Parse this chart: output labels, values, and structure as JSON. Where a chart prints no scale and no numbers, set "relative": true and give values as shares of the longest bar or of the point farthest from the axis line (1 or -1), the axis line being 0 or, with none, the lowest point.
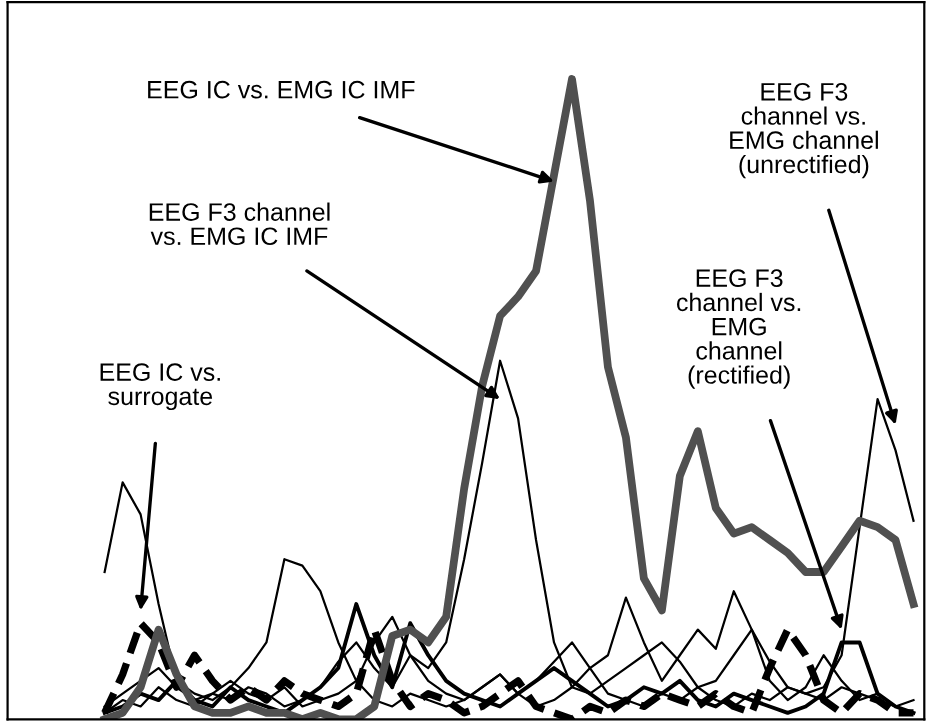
{
  "chart_data": {
    "type": "line",
    "relative": true,
    "categories": [
      null,
      null,
      null,
      null,
      null,
      null,
      null,
      null,
      null,
      null,
      null,
      null,
      null,
      null,
      null,
      null,
      null,
      null,
      null,
      null,
      null,
      null,
      null,
      null,
      null,
      null,
      null,
      null,
      null,
      null,
      null,
      null,
      null,
      null,
      null,
      null,
      null,
      null,
      null,
      null,
      null,
      null,
      null,
      null,
      null,
      null
    ],
    "annotations": [
      "EEG F3 channel\nvs. EMG IC IMF",
      "EEG F3\nchannel vs.\nEMG channel\n(unrectified)",
      "EEG F3\nchannel vs.\nEMG\nchannel\n(rectified)",
      "EEG IC vs.\nsurrogate",
      "EEG IC vs. EMG IC IMF"
    ],
    "series": [
      {
        "color": "#000000",
        "line_style": "solid",
        "values": [
          0.02,
          0.04,
          0.06,
          0.08,
          0.05,
          0.03,
          0.04,
          0.03,
          0.05,
          0.04,
          0.02,
          0.03,
          0.05,
          0.09,
          0.12,
          0.08,
          0.05,
          0.1,
          0.08,
          0.12,
          0.25,
          0.4,
          0.56,
          0.47,
          0.28,
          0.12,
          0.05,
          0.04,
          0.06,
          0.08,
          0.1,
          0.12,
          0.09,
          0.05,
          0.06,
          0.1,
          0.14,
          0.09,
          0.05,
          0.04,
          0.03,
          0.05,
          0.04,
          0.03,
          0.02,
          0.03
        ]
      },
      {
        "color": "#000000",
        "line_style": "solid",
        "values": [
          0.23,
          0.37,
          0.32,
          0.18,
          0.06,
          0.04,
          0.03,
          0.05,
          0.08,
          0.12,
          0.25,
          0.24,
          0.2,
          0.12,
          0.06,
          0.03,
          0.02,
          0.04,
          0.03,
          0.02,
          0.03,
          0.05,
          0.07,
          0.04,
          0.02,
          0.03,
          0.05,
          0.08,
          0.04,
          0.03,
          0.02,
          0.04,
          0.03,
          0.05,
          0.03,
          0.02,
          0.04,
          0.03,
          0.05,
          0.04,
          0.05,
          0.1,
          0.3,
          0.5,
          0.42,
          0.31
        ]
      },
      {
        "color": "#000000",
        "line_style": "solid",
        "values": [
          0.01,
          0.03,
          0.02,
          0.05,
          0.03,
          0.02,
          0.04,
          0.06,
          0.04,
          0.03,
          0.05,
          0.02,
          0.03,
          0.04,
          0.06,
          0.12,
          0.16,
          0.1,
          0.06,
          0.04,
          0.03,
          0.05,
          0.07,
          0.04,
          0.06,
          0.09,
          0.12,
          0.08,
          0.1,
          0.19,
          0.12,
          0.06,
          0.1,
          0.14,
          0.11,
          0.2,
          0.14,
          0.06,
          0.03,
          0.05,
          0.1,
          0.06,
          0.03,
          0.04,
          0.02,
          0.01
        ]
      },
      {
        "color": "#000000",
        "line_style": "solid",
        "values": [
          0.01,
          0.02,
          0.04,
          0.03,
          0.06,
          0.03,
          0.02,
          0.05,
          0.03,
          0.02,
          0.01,
          0.03,
          0.05,
          0.08,
          0.18,
          0.1,
          0.05,
          0.15,
          0.1,
          0.06,
          0.04,
          0.03,
          0.02,
          0.04,
          0.06,
          0.08,
          0.06,
          0.04,
          0.02,
          0.03,
          0.05,
          0.04,
          0.06,
          0.03,
          0.02,
          0.04,
          0.03,
          0.02,
          0.01,
          0.02,
          0.04,
          0.12,
          0.12,
          0.04,
          0.02,
          0.01
        ]
      },
      {
        "color": "#000000",
        "line_style": "dashed",
        "values": [
          0.01,
          0.07,
          0.15,
          0.12,
          0.05,
          0.1,
          0.06,
          0.03,
          0.05,
          0.03,
          0.06,
          0.04,
          0.03,
          0.02,
          0.04,
          0.14,
          0.06,
          0.02,
          0.04,
          0.03,
          0.01,
          0.02,
          0.04,
          0.06,
          0.02,
          0.01,
          0.0,
          0.02,
          0.01,
          0.03,
          0.02,
          0.04,
          0.03,
          0.02,
          0.04,
          0.02,
          0.01,
          0.08,
          0.14,
          0.1,
          0.03,
          0.01,
          0.04,
          0.03,
          0.01,
          0.01
        ]
      },
      {
        "color": "#505050",
        "line_style": "solid",
        "values": [
          0.0,
          0.01,
          0.05,
          0.14,
          0.07,
          0.02,
          0.01,
          0.01,
          0.02,
          0.01,
          0.01,
          0.0,
          0.01,
          0.0,
          0.0,
          0.02,
          0.13,
          0.14,
          0.12,
          0.16,
          0.36,
          0.52,
          0.63,
          0.66,
          0.7,
          0.85,
          1.0,
          0.81,
          0.55,
          0.44,
          0.22,
          0.17,
          0.38,
          0.45,
          0.33,
          0.29,
          0.3,
          0.28,
          0.26,
          0.23,
          0.23,
          0.27,
          0.31,
          0.3,
          0.28,
          0.18
        ]
      }
    ]
  }
}
